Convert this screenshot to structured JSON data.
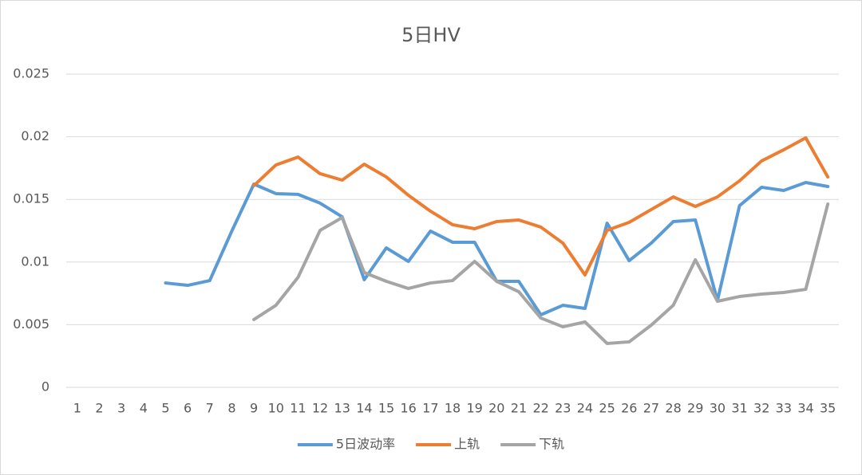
{
  "chart_data": {
    "type": "line",
    "title": "5日HV",
    "categories": [
      "1",
      "2",
      "3",
      "4",
      "5",
      "6",
      "7",
      "8",
      "9",
      "10",
      "11",
      "12",
      "13",
      "14",
      "15",
      "16",
      "17",
      "18",
      "19",
      "20",
      "21",
      "22",
      "23",
      "24",
      "25",
      "26",
      "27",
      "28",
      "29",
      "30",
      "31",
      "32",
      "33",
      "34",
      "35"
    ],
    "ylim": [
      0,
      0.025
    ],
    "yticks": [
      0,
      0.005,
      0.01,
      0.015,
      0.02,
      0.025
    ],
    "grid": true,
    "legend": "bottom",
    "series": [
      {
        "name": "5日波动率",
        "color": "#5b9bd5",
        "values": [
          null,
          null,
          null,
          null,
          0.00833,
          0.00814,
          0.00852,
          0.01247,
          0.01622,
          0.01546,
          0.0154,
          0.0147,
          0.01361,
          0.00859,
          0.01113,
          0.01005,
          0.01247,
          0.01158,
          0.01158,
          0.00846,
          0.00846,
          0.00579,
          0.00655,
          0.0063,
          0.0131,
          0.01011,
          0.01151,
          0.01323,
          0.01336,
          0.00693,
          0.0145,
          0.01597,
          0.01571,
          0.01635,
          0.01603
        ]
      },
      {
        "name": "上轨",
        "color": "#ed7d31",
        "values": [
          null,
          null,
          null,
          null,
          null,
          null,
          null,
          null,
          0.0161,
          0.01775,
          0.01838,
          0.01705,
          0.01654,
          0.01781,
          0.01679,
          0.01533,
          0.01406,
          0.01298,
          0.01266,
          0.01323,
          0.01336,
          0.01279,
          0.01151,
          0.00897,
          0.01253,
          0.01317,
          0.01419,
          0.0152,
          0.01444,
          0.0152,
          0.01648,
          0.01807,
          0.01896,
          0.01991,
          0.01679
        ]
      },
      {
        "name": "下轨",
        "color": "#a5a5a5",
        "values": [
          null,
          null,
          null,
          null,
          null,
          null,
          null,
          null,
          0.00541,
          0.00655,
          0.00878,
          0.01253,
          0.01355,
          0.00916,
          0.00846,
          0.00789,
          0.00833,
          0.00852,
          0.01005,
          0.00846,
          0.00763,
          0.00553,
          0.00483,
          0.00522,
          0.0035,
          0.00363,
          0.00496,
          0.00655,
          0.01018,
          0.00687,
          0.00725,
          0.00744,
          0.00757,
          0.00782,
          0.01463
        ]
      }
    ]
  }
}
